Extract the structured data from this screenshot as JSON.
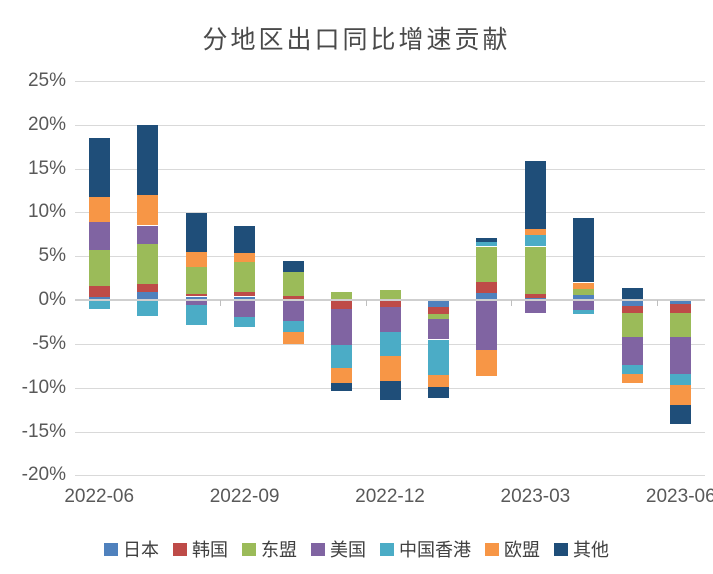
{
  "title": "分地区出口同比增速贡献",
  "y_axis": {
    "tick_labels": [
      "25%",
      "20%",
      "15%",
      "10%",
      "5%",
      "0%",
      "-5%",
      "-10%",
      "-15%",
      "-20%"
    ],
    "tick_values": [
      25,
      20,
      15,
      10,
      5,
      0,
      -5,
      -10,
      -15,
      -20
    ]
  },
  "x_axis": {
    "tick_labels": [
      "2022-06",
      "2022-09",
      "2022-12",
      "2023-03",
      "2023-06"
    ],
    "tick_category_indexes": [
      0,
      3,
      6,
      9,
      12
    ]
  },
  "chart_data": {
    "type": "bar",
    "stacked": true,
    "title": "分地区出口同比增速贡献",
    "xlabel": "",
    "ylabel": "",
    "ylim": [
      -20,
      25
    ],
    "ytick_step": 5,
    "grid": true,
    "legend_position": "bottom",
    "categories": [
      "2022-06",
      "2022-07",
      "2022-08",
      "2022-09",
      "2022-10",
      "2022-11",
      "2022-12",
      "2023-01",
      "2023-02",
      "2023-03",
      "2023-04",
      "2023-05",
      "2023-06"
    ],
    "series": [
      {
        "key": "japan",
        "name": "日本",
        "color": "#4F81BD",
        "values": [
          0.4,
          0.9,
          0.4,
          0.4,
          0.0,
          0.0,
          0.0,
          -0.8,
          0.8,
          0.2,
          0.55,
          -0.7,
          -0.5
        ]
      },
      {
        "key": "korea",
        "name": "韩国",
        "color": "#BE4B48",
        "values": [
          1.2,
          0.9,
          0.3,
          0.5,
          0.5,
          -1.0,
          -0.8,
          -0.8,
          1.3,
          0.5,
          0.0,
          -0.8,
          -1.0
        ]
      },
      {
        "key": "asean",
        "name": "东盟",
        "color": "#9BBB59",
        "values": [
          4.1,
          4.6,
          3.1,
          3.4,
          2.7,
          0.9,
          1.2,
          -0.6,
          4.0,
          5.4,
          0.7,
          -2.7,
          -2.7
        ]
      },
      {
        "key": "us",
        "name": "美国",
        "color": "#8064A2",
        "values": [
          3.2,
          2.1,
          -0.6,
          -1.9,
          -2.4,
          -4.1,
          -2.8,
          -2.3,
          -5.7,
          -1.5,
          -1.1,
          -3.2,
          -4.2
        ]
      },
      {
        "key": "hongkong",
        "name": "中国香港",
        "color": "#4BACC6",
        "values": [
          -1.0,
          -1.8,
          -2.3,
          -1.2,
          -1.2,
          -2.7,
          -2.8,
          -4.0,
          0.5,
          1.3,
          -0.5,
          -1.0,
          -1.3
        ]
      },
      {
        "key": "eu",
        "name": "欧盟",
        "color": "#F79646",
        "values": [
          2.8,
          3.5,
          1.7,
          1.1,
          -1.4,
          -1.7,
          -2.8,
          -1.4,
          -3.0,
          0.7,
          0.75,
          -1.1,
          -2.3
        ]
      },
      {
        "key": "other",
        "name": "其他",
        "color": "#1F4E79",
        "values": [
          6.8,
          8.0,
          4.4,
          3.1,
          1.3,
          -0.9,
          -2.2,
          -1.3,
          0.5,
          7.8,
          7.4,
          1.4,
          -2.1
        ]
      }
    ]
  }
}
